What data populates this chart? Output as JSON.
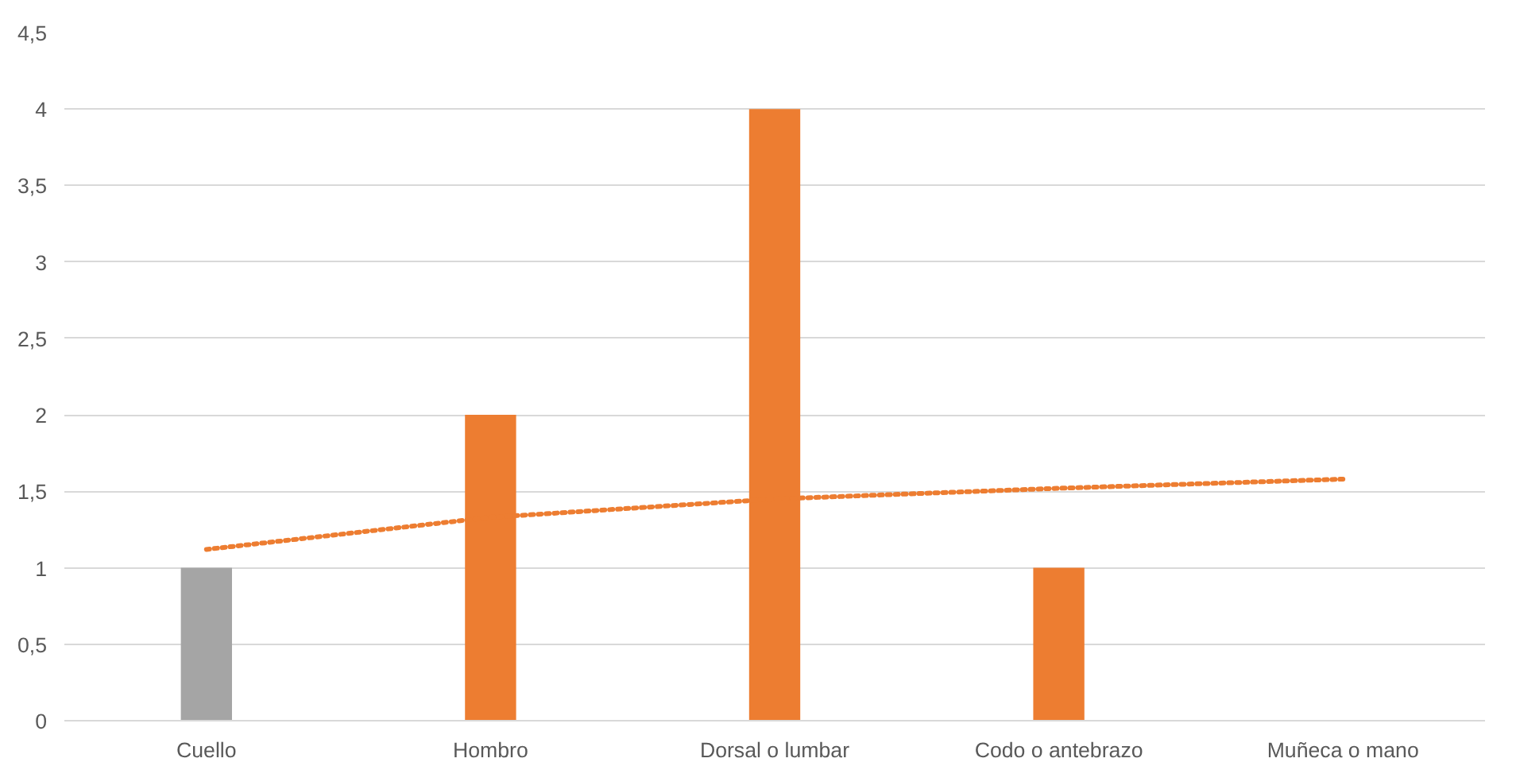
{
  "chart_data": {
    "type": "bar",
    "categories": [
      "Cuello",
      "Hombro",
      "Dorsal o lumbar",
      "Codo o antebrazo",
      "Muñeca o mano"
    ],
    "series": [
      {
        "colors": [
          "#a5a5a5",
          "#ed7d31",
          "#ed7d31",
          "#ed7d31",
          "#ed7d31"
        ],
        "values": [
          1,
          2,
          4,
          1,
          0
        ]
      },
      {
        "type": "line",
        "color": "#ed7d31",
        "line_style": "dotted",
        "values": [
          1.12,
          1.33,
          1.45,
          1.52,
          1.58
        ]
      }
    ],
    "ylim": [
      0,
      4.5
    ],
    "yticks": [
      {
        "value": 0,
        "label": "0"
      },
      {
        "value": 0.5,
        "label": "0,5"
      },
      {
        "value": 1,
        "label": "1"
      },
      {
        "value": 1.5,
        "label": "1,5"
      },
      {
        "value": 2,
        "label": "2"
      },
      {
        "value": 2.5,
        "label": "2,5"
      },
      {
        "value": 3,
        "label": "3"
      },
      {
        "value": 3.5,
        "label": "3,5"
      },
      {
        "value": 4,
        "label": "4"
      },
      {
        "value": 4.5,
        "label": "4,5"
      }
    ],
    "grid": "y"
  }
}
